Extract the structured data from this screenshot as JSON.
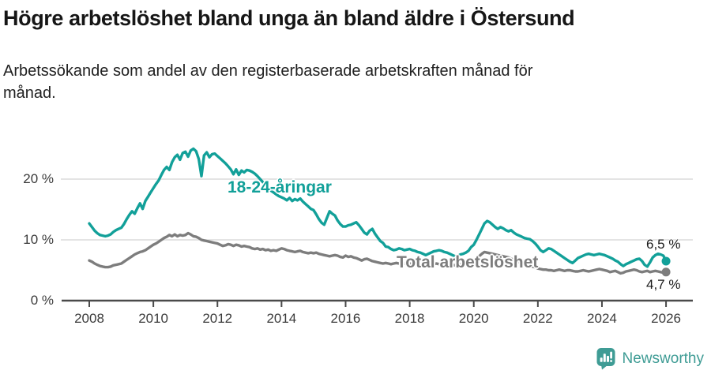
{
  "header": {
    "title": "Högre arbetslöshet bland unga än bland äldre i Östersund",
    "subtitle_line1": "Arbetssökande som andel av den registerbaserade arbetskraften månad för",
    "subtitle_line2": "månad."
  },
  "chart_data": {
    "type": "line",
    "title": "Högre arbetslöshet bland unga än bland äldre i Östersund",
    "subtitle": "Arbetssökande som andel av den registerbaserade arbetskraften månad för månad.",
    "x_unit": "months",
    "x_start_year": 2008,
    "x_end_year": 2026,
    "x_ticks": [
      2008,
      2010,
      2012,
      2014,
      2016,
      2018,
      2020,
      2022,
      2024,
      2026
    ],
    "y_ticks": [
      {
        "value": 0,
        "label": "0 %"
      },
      {
        "value": 10,
        "label": "10 %"
      },
      {
        "value": 20,
        "label": "20 %"
      }
    ],
    "ylim": [
      0,
      26
    ],
    "grid": "horizontal-only",
    "legend_position": "inline-labels",
    "series": [
      {
        "name": "Total arbetslöshet",
        "color": "#7D7D7D",
        "end_label": "4,7 %",
        "end_value": 4.7,
        "values": [
          6.6,
          6.4,
          6.1,
          5.9,
          5.7,
          5.6,
          5.5,
          5.5,
          5.6,
          5.8,
          5.9,
          6.0,
          6.1,
          6.4,
          6.7,
          7.0,
          7.3,
          7.6,
          7.8,
          8.0,
          8.1,
          8.3,
          8.6,
          8.9,
          9.2,
          9.4,
          9.7,
          10.0,
          10.3,
          10.5,
          10.8,
          10.6,
          10.9,
          10.6,
          10.8,
          10.7,
          10.8,
          11.1,
          10.9,
          10.6,
          10.5,
          10.3,
          10.0,
          9.9,
          9.8,
          9.7,
          9.6,
          9.5,
          9.4,
          9.2,
          9.0,
          9.1,
          9.3,
          9.2,
          9.0,
          9.2,
          9.1,
          8.9,
          9.0,
          8.9,
          8.8,
          8.6,
          8.5,
          8.6,
          8.4,
          8.5,
          8.3,
          8.4,
          8.2,
          8.3,
          8.2,
          8.4,
          8.6,
          8.5,
          8.3,
          8.2,
          8.1,
          8.0,
          8.1,
          8.2,
          8.0,
          7.9,
          7.8,
          7.9,
          7.8,
          7.9,
          7.7,
          7.6,
          7.5,
          7.4,
          7.3,
          7.4,
          7.5,
          7.4,
          7.2,
          7.1,
          7.4,
          7.2,
          7.3,
          7.1,
          7.0,
          6.8,
          6.6,
          6.8,
          6.9,
          6.7,
          6.5,
          6.4,
          6.3,
          6.2,
          6.1,
          6.2,
          6.1,
          6.0,
          6.1,
          6.2,
          6.1,
          6.0,
          6.1,
          6.2,
          6.1,
          6.0,
          5.9,
          5.8,
          5.9,
          6.0,
          5.9,
          5.8,
          5.9,
          6.0,
          6.1,
          6.0,
          5.9,
          5.8,
          5.9,
          6.0,
          5.9,
          5.8,
          5.9,
          6.0,
          6.1,
          6.2,
          6.3,
          6.4,
          6.6,
          6.9,
          7.3,
          7.7,
          8.0,
          7.9,
          7.8,
          7.7,
          7.6,
          7.5,
          7.4,
          7.3,
          7.2,
          7.1,
          6.9,
          6.7,
          6.5,
          6.3,
          6.1,
          5.9,
          5.8,
          5.7,
          5.6,
          5.5,
          5.3,
          5.2,
          5.1,
          5.1,
          5.0,
          5.0,
          4.9,
          5.0,
          5.1,
          5.0,
          4.9,
          5.0,
          5.0,
          4.9,
          4.8,
          4.8,
          4.9,
          5.0,
          4.9,
          4.8,
          4.9,
          5.0,
          5.1,
          5.2,
          5.1,
          5.0,
          4.9,
          4.7,
          4.8,
          4.9,
          4.7,
          4.5,
          4.6,
          4.8,
          4.9,
          5.0,
          5.1,
          5.0,
          4.8,
          4.7,
          4.8,
          4.9,
          4.7,
          4.8,
          4.9,
          4.8,
          4.7,
          4.6,
          4.7
        ]
      },
      {
        "name": "18-24-åringar",
        "color": "#12A099",
        "end_label": "6,5 %",
        "end_value": 6.5,
        "values": [
          12.7,
          12.1,
          11.5,
          11.1,
          10.8,
          10.7,
          10.6,
          10.7,
          10.9,
          11.3,
          11.6,
          11.8,
          12.0,
          12.6,
          13.4,
          14.1,
          14.7,
          14.3,
          15.2,
          16.0,
          15.1,
          16.4,
          17.1,
          17.8,
          18.5,
          19.2,
          19.8,
          20.7,
          21.5,
          22.0,
          21.5,
          22.8,
          23.6,
          24.0,
          23.2,
          24.3,
          24.5,
          23.7,
          24.7,
          25.0,
          24.6,
          23.3,
          20.5,
          23.9,
          24.4,
          23.6,
          24.1,
          24.2,
          23.8,
          23.4,
          23.0,
          22.6,
          22.1,
          21.6,
          20.8,
          21.6,
          20.7,
          21.4,
          21.1,
          21.5,
          21.4,
          21.2,
          20.9,
          20.5,
          20.0,
          19.5,
          19.0,
          18.5,
          18.1,
          17.8,
          17.5,
          17.2,
          17.0,
          16.8,
          16.5,
          16.9,
          16.4,
          16.7,
          16.5,
          16.8,
          16.3,
          15.9,
          15.5,
          15.1,
          14.9,
          14.2,
          13.4,
          12.8,
          12.5,
          13.6,
          14.7,
          14.3,
          14.0,
          13.2,
          12.6,
          12.2,
          12.2,
          12.4,
          12.5,
          12.7,
          12.9,
          12.4,
          11.8,
          11.2,
          10.9,
          11.5,
          11.8,
          11.0,
          10.4,
          9.8,
          9.5,
          8.9,
          8.8,
          8.5,
          8.3,
          8.4,
          8.6,
          8.5,
          8.3,
          8.4,
          8.5,
          8.3,
          8.2,
          8.0,
          7.9,
          7.7,
          7.5,
          7.7,
          7.9,
          8.1,
          8.2,
          8.3,
          8.2,
          8.0,
          7.9,
          7.7,
          7.5,
          7.3,
          7.4,
          7.6,
          7.7,
          7.9,
          8.2,
          8.8,
          9.2,
          10.0,
          10.9,
          11.8,
          12.7,
          13.1,
          12.9,
          12.5,
          12.1,
          11.8,
          12.1,
          11.9,
          11.6,
          11.4,
          11.6,
          11.2,
          10.9,
          10.7,
          10.5,
          10.3,
          10.2,
          10.1,
          9.8,
          9.4,
          8.9,
          8.3,
          8.0,
          8.3,
          8.6,
          8.5,
          8.2,
          7.9,
          7.6,
          7.3,
          7.0,
          6.7,
          6.4,
          6.2,
          6.6,
          7.0,
          7.2,
          7.4,
          7.6,
          7.7,
          7.6,
          7.5,
          7.6,
          7.7,
          7.6,
          7.5,
          7.3,
          7.1,
          6.9,
          6.6,
          6.4,
          6.0,
          5.7,
          6.0,
          6.2,
          6.4,
          6.6,
          6.8,
          6.9,
          6.5,
          5.9,
          5.6,
          6.3,
          7.1,
          7.5,
          7.7,
          7.6,
          7.4,
          6.5
        ]
      }
    ]
  },
  "annotations": {
    "young_label": "18-24-åringar",
    "total_label": "Total arbetslöshet",
    "end_value_top": "6,5 %",
    "end_value_bottom": "4,7 %"
  },
  "footer": {
    "brand": "Newsworthy",
    "brand_color": "#3F9C95",
    "logo_icon": "bar-chart-speech-bubble-icon"
  },
  "colors": {
    "young_line": "#12A099",
    "total_line": "#7D7D7D",
    "gridline": "#DBDBDB",
    "axis": "#4A4A4A",
    "tick_text": "#3a3a3a",
    "background": "#FFFFFF"
  }
}
